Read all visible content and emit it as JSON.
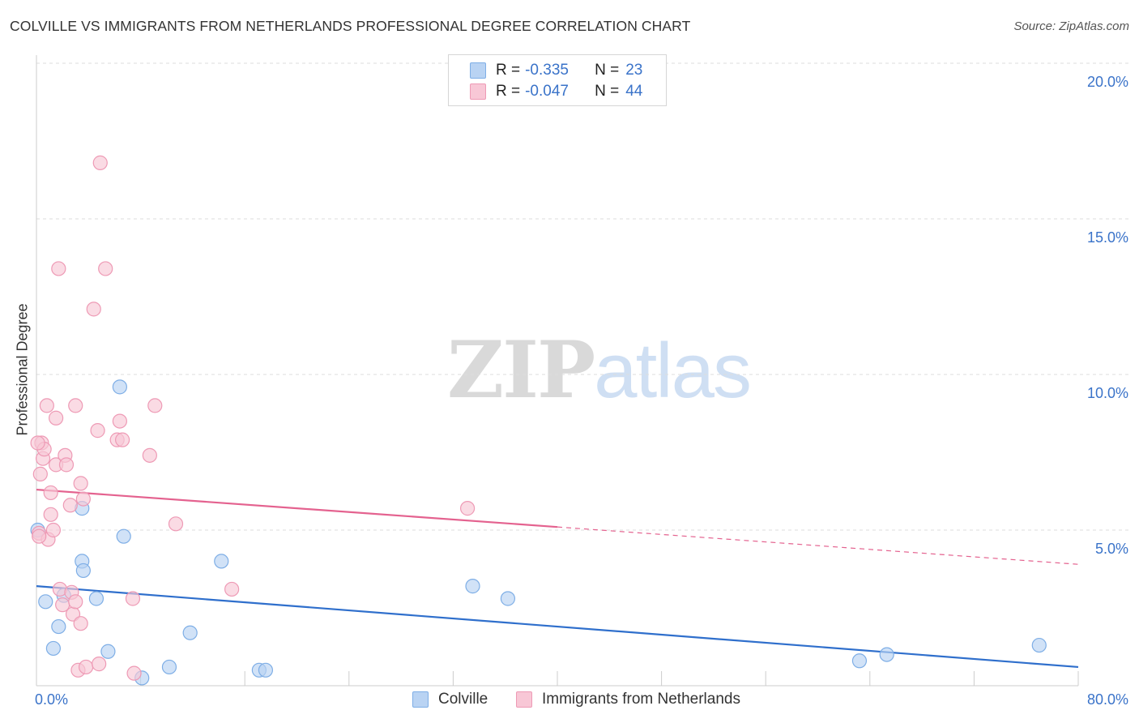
{
  "header": {
    "title": "COLVILLE VS IMMIGRANTS FROM NETHERLANDS PROFESSIONAL DEGREE CORRELATION CHART",
    "source": "Source: ZipAtlas.com"
  },
  "legend_top": {
    "rows": [
      {
        "r_label": "R =",
        "r_value": "-0.335",
        "n_label": "N =",
        "n_value": "23"
      },
      {
        "r_label": "R =",
        "r_value": "-0.047",
        "n_label": "N =",
        "n_value": "44"
      }
    ]
  },
  "legend_bottom": {
    "items": [
      {
        "label": "Colville"
      },
      {
        "label": "Immigrants from Netherlands"
      }
    ]
  },
  "watermark": {
    "zip": "ZIP",
    "atlas": "atlas"
  },
  "colors": {
    "blue_fill": "#b9d3f3",
    "blue_stroke": "#7eaee6",
    "blue_line": "#2f6fcc",
    "pink_fill": "#f8c7d6",
    "pink_stroke": "#ee9ab5",
    "pink_line": "#e4628f",
    "grid": "#dddddd",
    "tick_text": "#3a73c9"
  },
  "chart_data": {
    "type": "scatter",
    "title": "COLVILLE VS IMMIGRANTS FROM NETHERLANDS PROFESSIONAL DEGREE CORRELATION CHART",
    "xlabel": "",
    "ylabel": "Professional Degree",
    "xlim": [
      0,
      80
    ],
    "ylim": [
      0,
      20
    ],
    "x_tick_labels": [
      "0.0%",
      "80.0%"
    ],
    "y_ticks": [
      5,
      10,
      15,
      20
    ],
    "y_tick_labels": [
      "5.0%",
      "10.0%",
      "15.0%",
      "20.0%"
    ],
    "grid": true,
    "series": [
      {
        "name": "Colville",
        "color": "#7eaee6",
        "points": [
          [
            0.1,
            5.0
          ],
          [
            0.7,
            2.7
          ],
          [
            1.3,
            1.2
          ],
          [
            1.7,
            1.9
          ],
          [
            2.1,
            2.9
          ],
          [
            3.5,
            5.7
          ],
          [
            3.5,
            4.0
          ],
          [
            3.6,
            3.7
          ],
          [
            4.6,
            2.8
          ],
          [
            5.5,
            1.1
          ],
          [
            6.4,
            9.6
          ],
          [
            6.7,
            4.8
          ],
          [
            8.1,
            0.25
          ],
          [
            10.2,
            0.6
          ],
          [
            11.8,
            1.7
          ],
          [
            14.2,
            4.0
          ],
          [
            17.1,
            0.5
          ],
          [
            17.6,
            0.5
          ],
          [
            33.5,
            3.2
          ],
          [
            36.2,
            2.8
          ],
          [
            63.2,
            0.8
          ],
          [
            65.3,
            1.0
          ],
          [
            77.0,
            1.3
          ]
        ],
        "trend": {
          "x": [
            0,
            80
          ],
          "y": [
            3.2,
            0.6
          ]
        }
      },
      {
        "name": "Immigrants from Netherlands",
        "color": "#ee9ab5",
        "points": [
          [
            0.2,
            4.9
          ],
          [
            0.3,
            6.8
          ],
          [
            0.4,
            7.8
          ],
          [
            0.5,
            7.3
          ],
          [
            0.6,
            7.6
          ],
          [
            0.8,
            9.0
          ],
          [
            0.9,
            4.7
          ],
          [
            1.1,
            6.2
          ],
          [
            1.1,
            5.5
          ],
          [
            1.3,
            5.0
          ],
          [
            1.5,
            8.6
          ],
          [
            1.5,
            7.1
          ],
          [
            1.7,
            13.4
          ],
          [
            1.8,
            3.1
          ],
          [
            2.0,
            2.6
          ],
          [
            2.2,
            7.4
          ],
          [
            2.3,
            7.1
          ],
          [
            2.6,
            5.8
          ],
          [
            2.7,
            3.0
          ],
          [
            2.8,
            2.3
          ],
          [
            3.0,
            9.0
          ],
          [
            3.0,
            2.7
          ],
          [
            3.2,
            0.5
          ],
          [
            3.4,
            6.5
          ],
          [
            3.4,
            2.0
          ],
          [
            3.6,
            6.0
          ],
          [
            3.8,
            0.6
          ],
          [
            4.4,
            12.1
          ],
          [
            4.7,
            8.2
          ],
          [
            4.8,
            0.7
          ],
          [
            4.9,
            16.8
          ],
          [
            5.3,
            13.4
          ],
          [
            6.2,
            7.9
          ],
          [
            6.4,
            8.5
          ],
          [
            6.6,
            7.9
          ],
          [
            7.4,
            2.8
          ],
          [
            7.5,
            0.4
          ],
          [
            8.7,
            7.4
          ],
          [
            9.1,
            9.0
          ],
          [
            10.7,
            5.2
          ],
          [
            15.0,
            3.1
          ],
          [
            33.1,
            5.7
          ],
          [
            0.1,
            7.8
          ],
          [
            0.2,
            4.8
          ]
        ],
        "trend": {
          "x": [
            0,
            40
          ],
          "y": [
            6.3,
            5.1
          ]
        },
        "trend_dashed": {
          "x": [
            40,
            80
          ],
          "y": [
            5.1,
            3.9
          ]
        }
      }
    ]
  }
}
